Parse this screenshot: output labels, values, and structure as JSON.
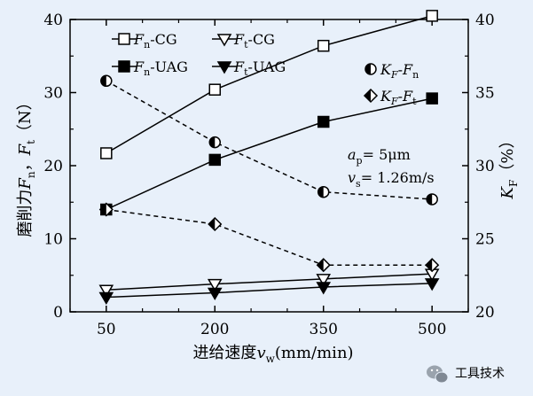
{
  "background_color": "#e8f0fa",
  "chart_data": {
    "type": "line",
    "x": [
      50,
      200,
      350,
      500
    ],
    "x_tick_labels": [
      "50",
      "200",
      "350",
      "500"
    ],
    "xlim": [
      0,
      550
    ],
    "left_axis": {
      "label_parts": [
        "磨削力",
        "F",
        "n",
        "，",
        "F",
        "t",
        "（N）"
      ],
      "ylim": [
        0,
        40
      ],
      "ticks": [
        "0",
        "10",
        "20",
        "30",
        "40"
      ]
    },
    "right_axis": {
      "label_parts": [
        "K",
        "F",
        "（%）"
      ],
      "ylim": [
        20,
        40
      ],
      "ticks": [
        "20",
        "25",
        "30",
        "35",
        "40"
      ]
    },
    "xlabel_parts": [
      "进给速度",
      "v",
      "w",
      "(mm/min)"
    ],
    "series": [
      {
        "name": "Fn-CG",
        "legend": [
          "F",
          "n",
          "-CG"
        ],
        "axis": "left",
        "marker": "square-open",
        "line": "solid",
        "values": [
          21.7,
          30.4,
          36.4,
          40.5
        ]
      },
      {
        "name": "Ft-CG",
        "legend": [
          "F",
          "t",
          "-CG"
        ],
        "axis": "left",
        "marker": "triangle-down-open",
        "line": "solid",
        "values": [
          3.0,
          3.8,
          4.5,
          5.2
        ]
      },
      {
        "name": "Fn-UAG",
        "legend": [
          "F",
          "n",
          "-UAG"
        ],
        "axis": "left",
        "marker": "square-filled",
        "line": "solid",
        "values": [
          14.0,
          20.8,
          26.0,
          29.2
        ]
      },
      {
        "name": "Ft-UAG",
        "legend": [
          "F",
          "t",
          "-UAG"
        ],
        "axis": "left",
        "marker": "triangle-down-filled",
        "line": "solid",
        "values": [
          2.0,
          2.6,
          3.4,
          3.9
        ]
      },
      {
        "name": "KF-Fn",
        "legend": [
          "K",
          "F",
          "-",
          "F",
          "n"
        ],
        "axis": "right",
        "marker": "circle-half",
        "line": "dashed",
        "values": [
          35.8,
          31.6,
          28.2,
          27.7
        ]
      },
      {
        "name": "KF-Ft",
        "legend": [
          "K",
          "F",
          "-",
          "F",
          "t"
        ],
        "axis": "right",
        "marker": "diamond-half",
        "line": "dashed",
        "values": [
          27.0,
          26.0,
          23.2,
          23.2
        ]
      }
    ],
    "annotations": [
      {
        "parts": [
          "a",
          "p",
          "= 5μm"
        ]
      },
      {
        "parts": [
          "v",
          "s",
          "= 1.26m/s"
        ]
      }
    ]
  },
  "watermark": {
    "text": "工具技术",
    "icon": "wechat-icon"
  }
}
